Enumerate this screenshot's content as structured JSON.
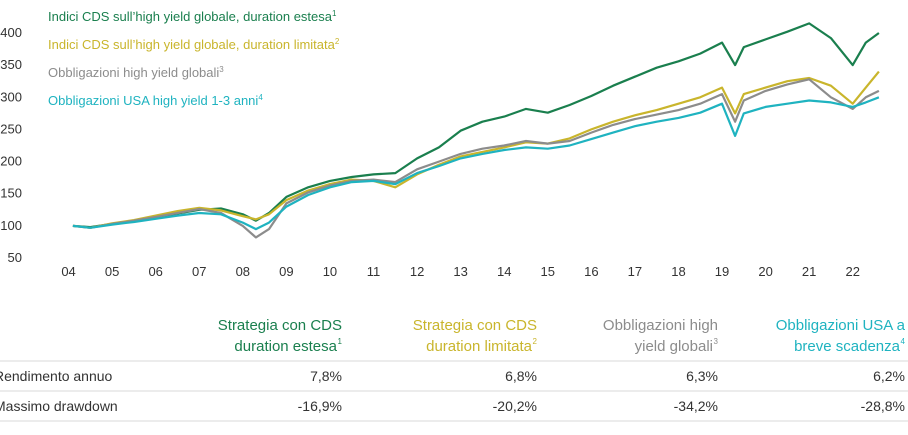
{
  "chart_data": {
    "type": "line",
    "x": [
      4.1,
      4.5,
      5,
      5.5,
      6,
      6.5,
      7,
      7.5,
      8,
      8.3,
      8.6,
      9,
      9.5,
      10,
      10.5,
      11,
      11.5,
      12,
      12.5,
      13,
      13.5,
      14,
      14.5,
      15,
      15.5,
      16,
      16.5,
      17,
      17.5,
      18,
      18.5,
      19,
      19.3,
      19.5,
      20,
      20.5,
      21,
      21.5,
      22,
      22.3,
      22.6
    ],
    "xlim": [
      3,
      23.2
    ],
    "xticks": [
      {
        "value": 4,
        "label": "04"
      },
      {
        "value": 5,
        "label": "05"
      },
      {
        "value": 6,
        "label": "06"
      },
      {
        "value": 7,
        "label": "07"
      },
      {
        "value": 8,
        "label": "08"
      },
      {
        "value": 9,
        "label": "09"
      },
      10,
      11,
      12,
      13,
      14,
      15,
      16,
      17,
      18,
      19,
      20,
      21,
      22
    ],
    "ylim": [
      50,
      400
    ],
    "yticks": [
      50,
      100,
      150,
      200,
      250,
      300,
      350,
      400
    ],
    "grid": false,
    "series": [
      {
        "name": "Indici CDS sull’high yield globale, duration estesa",
        "footnote": "1",
        "color": "#1a7f4e",
        "values": [
          100,
          98,
          103,
          107,
          113,
          119,
          125,
          127,
          118,
          108,
          120,
          145,
          160,
          170,
          176,
          180,
          182,
          205,
          222,
          248,
          262,
          270,
          282,
          276,
          288,
          302,
          318,
          332,
          346,
          356,
          368,
          385,
          350,
          378,
          390,
          402,
          415,
          392,
          350,
          385,
          400
        ]
      },
      {
        "name": "Indici CDS sull’high yield globale, duration limitata",
        "footnote": "2",
        "color": "#c9b52c",
        "values": [
          100,
          97,
          104,
          109,
          116,
          123,
          128,
          124,
          115,
          110,
          118,
          140,
          155,
          165,
          172,
          170,
          160,
          180,
          195,
          208,
          215,
          222,
          230,
          228,
          236,
          250,
          262,
          272,
          280,
          290,
          300,
          315,
          275,
          305,
          315,
          325,
          330,
          318,
          290,
          315,
          340
        ]
      },
      {
        "name": "Obbligazioni high yield globali",
        "footnote": "3",
        "color": "#8c8c8c",
        "values": [
          100,
          97,
          103,
          108,
          114,
          120,
          126,
          120,
          100,
          82,
          95,
          135,
          152,
          163,
          170,
          172,
          168,
          188,
          200,
          212,
          220,
          225,
          232,
          228,
          232,
          245,
          257,
          266,
          273,
          280,
          290,
          305,
          262,
          295,
          310,
          320,
          328,
          300,
          282,
          300,
          310
        ]
      },
      {
        "name": "Obbligazioni USA high yield 1-3 anni",
        "footnote": "4",
        "color": "#1fb3c0",
        "values": [
          100,
          97,
          102,
          106,
          111,
          116,
          120,
          118,
          105,
          95,
          105,
          130,
          148,
          160,
          168,
          170,
          165,
          182,
          193,
          205,
          212,
          218,
          222,
          220,
          225,
          235,
          245,
          255,
          262,
          268,
          276,
          290,
          240,
          275,
          285,
          290,
          295,
          292,
          285,
          292,
          300
        ]
      }
    ]
  },
  "table": {
    "headers": [
      {
        "lines": [
          "Strategia con CDS",
          "duration estesa"
        ],
        "note": "1",
        "color": "#1a7f4e"
      },
      {
        "lines": [
          "Strategia con CDS",
          "duration limitata"
        ],
        "note": "2",
        "color": "#c9b52c"
      },
      {
        "lines": [
          "Obbligazioni high",
          "yield globali"
        ],
        "note": "3",
        "color": "#8c8c8c"
      },
      {
        "lines": [
          "Obbligazioni USA a",
          "breve scadenza"
        ],
        "note": "4",
        "color": "#1fb3c0"
      }
    ],
    "rows": [
      [
        "Rendimento annuo",
        "7,8%",
        "6,8%",
        "6,3%",
        "6,2%"
      ],
      [
        "Massimo drawdown",
        "-16,9%",
        "-20,2%",
        "-34,2%",
        "-28,8%"
      ]
    ]
  }
}
